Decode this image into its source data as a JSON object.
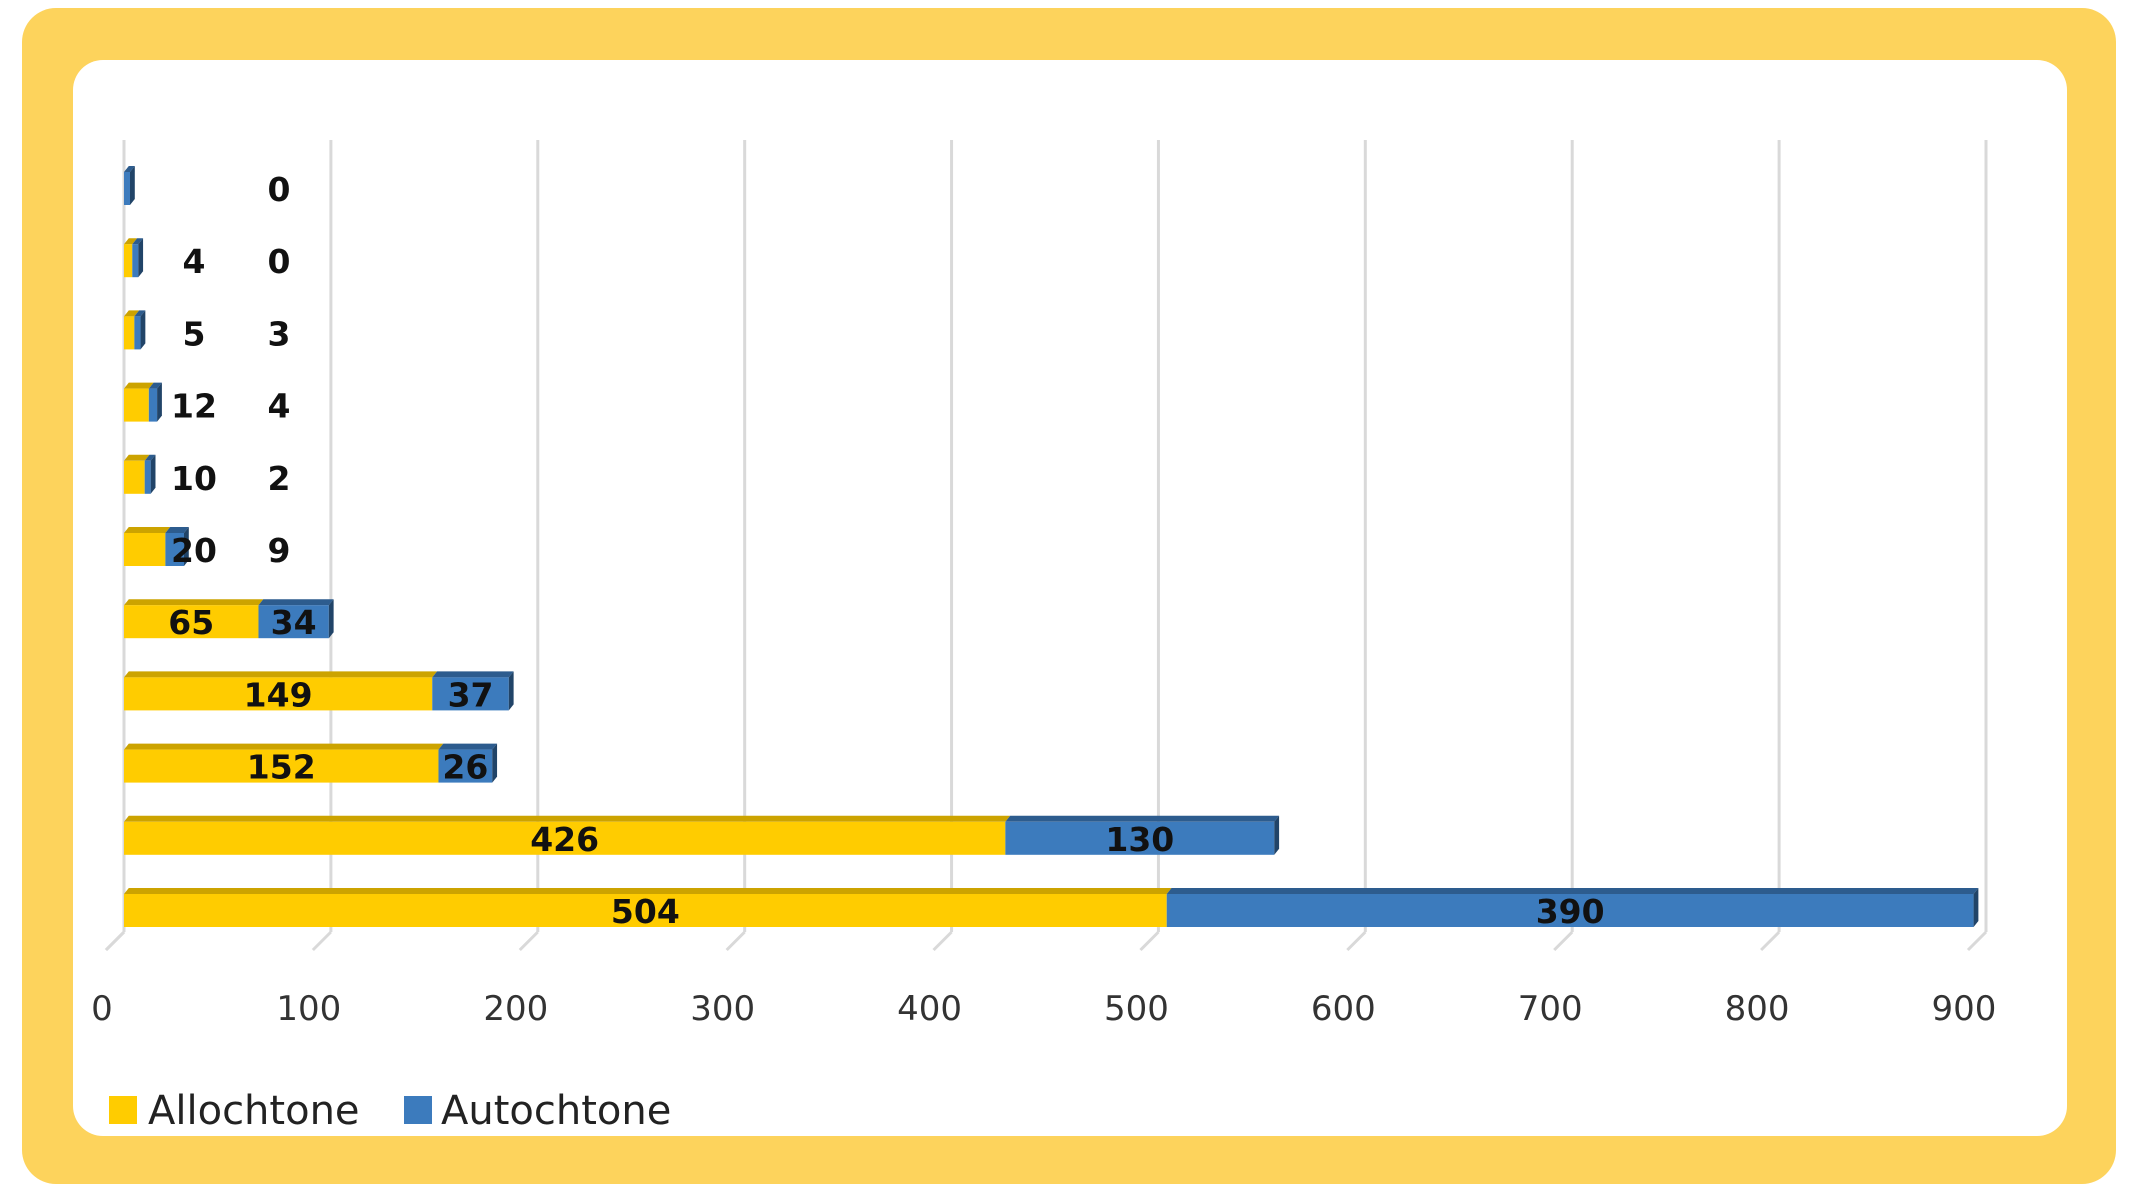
{
  "colors": {
    "frame": "#FDD35C",
    "allochtone": "#FFCC00",
    "autochtone": "#3C7BBD",
    "grid": "#D9D9D9"
  },
  "chart_data": {
    "type": "bar",
    "orientation": "horizontal",
    "stacked": true,
    "style": "3d",
    "title": "",
    "xlabel": "",
    "ylabel": "",
    "xlim": [
      0,
      900
    ],
    "x_ticks": [
      "0",
      "100",
      "200",
      "300",
      "400",
      "500",
      "600",
      "700",
      "800",
      "900"
    ],
    "grid": true,
    "legend_position": "bottom-left",
    "series": [
      {
        "name": "Allochtone",
        "color": "#FFCC00",
        "values": [
          0,
          4,
          5,
          12,
          10,
          20,
          65,
          149,
          152,
          426,
          504
        ],
        "labels": [
          "",
          "4",
          "5",
          "12",
          "10",
          "20",
          "65",
          "149",
          "152",
          "426",
          "504"
        ]
      },
      {
        "name": "Autochtone",
        "color": "#3C7BBD",
        "values": [
          0,
          0,
          3,
          4,
          2,
          9,
          34,
          37,
          26,
          130,
          390
        ],
        "labels": [
          "0",
          "0",
          "3",
          "4",
          "2",
          "9",
          "34",
          "37",
          "26",
          "130",
          "390"
        ]
      }
    ]
  }
}
